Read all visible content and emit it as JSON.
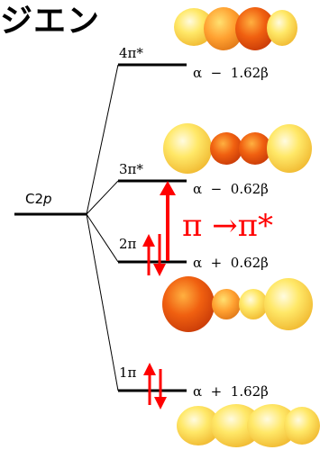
{
  "title": "ジエン",
  "atomic_orbital": {
    "label_main": "C2",
    "label_italic": "p"
  },
  "levels": [
    {
      "id": "1pi",
      "label": "1π",
      "energy": "α  +  1.62β",
      "occupied": true
    },
    {
      "id": "2pi",
      "label": "2π",
      "energy": "α  +  0.62β",
      "occupied": true
    },
    {
      "id": "3pi",
      "label": "3π*",
      "energy": "α  −  0.62β",
      "occupied": false
    },
    {
      "id": "4pi",
      "label": "4π*",
      "energy": "α  −  1.62β",
      "occupied": false
    }
  ],
  "transition": {
    "label": "π →π*"
  },
  "colors": {
    "arrow": "#ff0000",
    "lobe_dark": "#f05a10",
    "lobe_light": "#fff080",
    "line": "#000000"
  }
}
